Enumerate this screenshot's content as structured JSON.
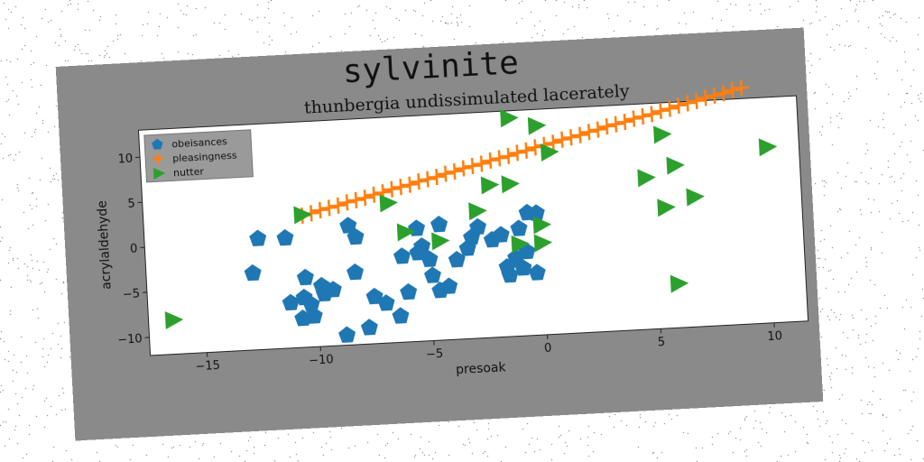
{
  "chart_data": {
    "suptitle": "sylvinite",
    "type": "scatter",
    "title": "thunbergia undissimulated lacerately",
    "xlabel": "presoak",
    "ylabel": "acrylaldehyde",
    "xlim": [
      -17.5,
      11.5
    ],
    "ylim": [
      -12,
      13
    ],
    "xticks": [
      -15,
      -10,
      -5,
      0,
      5,
      10
    ],
    "yticks": [
      -10,
      -5,
      0,
      5,
      10
    ],
    "grid": false,
    "legend_position": "upper-left",
    "series": [
      {
        "name": "obeisances",
        "marker": "pentagon",
        "color": "#1f77b4",
        "points": [
          [
            -12.5,
            0.3
          ],
          [
            -11.3,
            0.2
          ],
          [
            -8.5,
            1.2
          ],
          [
            -8.2,
            -0.1
          ],
          [
            -12.8,
            -3.5
          ],
          [
            -10.5,
            -4.3
          ],
          [
            -9.8,
            -5.3
          ],
          [
            -9.3,
            -5.8
          ],
          [
            -8.3,
            -4
          ],
          [
            -7.5,
            -6.8
          ],
          [
            -7,
            -7.6
          ],
          [
            -6.4,
            -9.1
          ],
          [
            -7.8,
            -10.2
          ],
          [
            -8.8,
            -10.9
          ],
          [
            -10.7,
            -8.8
          ],
          [
            -11.2,
            -7
          ],
          [
            -10.6,
            -6.5
          ],
          [
            -10.3,
            -7.3
          ],
          [
            -10.2,
            -8.6
          ],
          [
            -9.7,
            -6.2
          ],
          [
            -6.2,
            -2.5
          ],
          [
            -5.5,
            -2.2
          ],
          [
            -5.3,
            -1.5
          ],
          [
            -5,
            -3
          ],
          [
            -4.9,
            -4.8
          ],
          [
            -4.6,
            -6.5
          ],
          [
            -4.2,
            -6.1
          ],
          [
            -3.8,
            -3.2
          ],
          [
            -3.3,
            -2
          ],
          [
            -3.1,
            -0.8
          ],
          [
            -2.8,
            0.3
          ],
          [
            -2.2,
            -1.2
          ],
          [
            -1.8,
            -0.7
          ],
          [
            -1.6,
            -4.3
          ],
          [
            -1.2,
            -3.3
          ],
          [
            -0.9,
            -4.5
          ],
          [
            -0.7,
            -2.7
          ],
          [
            -0.3,
            -5.1
          ],
          [
            -0.6,
            1.6
          ],
          [
            -0.2,
            1.5
          ],
          [
            -1,
            -0.1
          ],
          [
            -5.5,
            0.5
          ],
          [
            -4.5,
            0.8
          ],
          [
            -6,
            -6.5
          ],
          [
            -1.5,
            -5.2
          ]
        ]
      },
      {
        "name": "pleasingness",
        "marker": "plus",
        "color": "#ff7f0e",
        "points": [
          [
            -10.5,
            2.6
          ],
          [
            -10.1,
            2.8
          ],
          [
            -9.7,
            3.1
          ],
          [
            -9.3,
            3.3
          ],
          [
            -8.9,
            3.5
          ],
          [
            -8.5,
            3.8
          ],
          [
            -8.1,
            4.0
          ],
          [
            -7.7,
            4.2
          ],
          [
            -7.3,
            4.5
          ],
          [
            -6.9,
            4.7
          ],
          [
            -6.5,
            5.0
          ],
          [
            -6.1,
            5.2
          ],
          [
            -5.7,
            5.4
          ],
          [
            -5.3,
            5.7
          ],
          [
            -4.9,
            5.9
          ],
          [
            -4.5,
            6.1
          ],
          [
            -4.1,
            6.4
          ],
          [
            -3.7,
            6.6
          ],
          [
            -3.3,
            6.9
          ],
          [
            -2.9,
            7.1
          ],
          [
            -2.5,
            7.3
          ],
          [
            -2.1,
            7.6
          ],
          [
            -1.7,
            7.8
          ],
          [
            -1.3,
            8.0
          ],
          [
            -0.9,
            8.3
          ],
          [
            -0.5,
            8.5
          ],
          [
            -0.1,
            8.8
          ],
          [
            0.3,
            9.0
          ],
          [
            0.7,
            9.2
          ],
          [
            1.1,
            9.5
          ],
          [
            1.5,
            9.7
          ],
          [
            1.9,
            9.9
          ],
          [
            2.3,
            10.2
          ],
          [
            2.7,
            10.4
          ],
          [
            3.1,
            10.7
          ],
          [
            3.5,
            10.9
          ],
          [
            3.9,
            11.1
          ],
          [
            4.3,
            11.4
          ],
          [
            4.7,
            11.6
          ],
          [
            5.1,
            11.8
          ],
          [
            5.5,
            12.1
          ],
          [
            5.9,
            12.3
          ],
          [
            6.3,
            12.6
          ],
          [
            6.7,
            12.8
          ],
          [
            7.1,
            13.0
          ],
          [
            7.5,
            13.3
          ],
          [
            7.9,
            13.5
          ],
          [
            8.3,
            13.7
          ],
          [
            8.7,
            14.0
          ],
          [
            9.1,
            14.2
          ]
        ]
      },
      {
        "name": "nutter",
        "marker": "triangle-right",
        "color": "#2ca02c",
        "points": [
          [
            -16.4,
            -8.2
          ],
          [
            -10.5,
            2.7
          ],
          [
            -6.7,
            3.5
          ],
          [
            -6,
            0.2
          ],
          [
            -4.5,
            -1
          ],
          [
            -2.8,
            2.1
          ],
          [
            -2.2,
            4.9
          ],
          [
            -1.3,
            4.9
          ],
          [
            -1.2,
            12.2
          ],
          [
            0,
            11.2
          ],
          [
            -1,
            -1.8
          ],
          [
            0,
            -1.8
          ],
          [
            0,
            0.2
          ],
          [
            0.5,
            8.2
          ],
          [
            4.7,
            4.8
          ],
          [
            5.5,
            9.5
          ],
          [
            6,
            6
          ],
          [
            5.5,
            1.4
          ],
          [
            6.8,
            2.4
          ],
          [
            10.1,
            7.5
          ],
          [
            5.9,
            -7.1
          ]
        ]
      }
    ]
  }
}
